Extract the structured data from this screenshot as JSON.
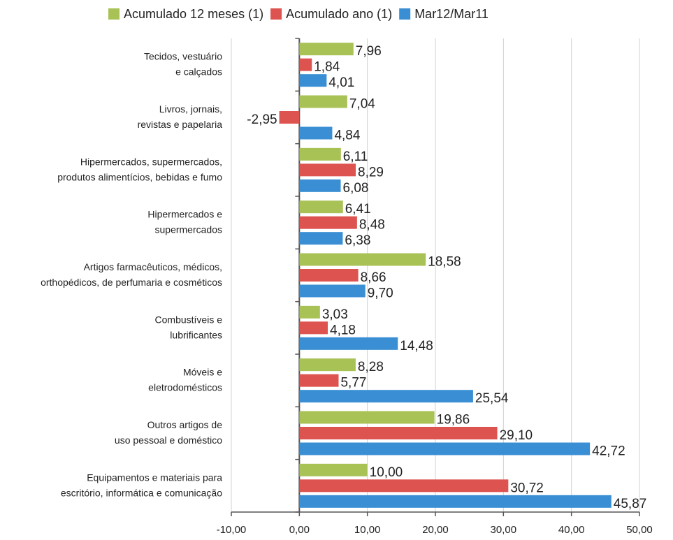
{
  "chart_data": {
    "type": "hbar",
    "categories": [
      "Tecidos, vestuário\ne calçados",
      "Livros, jornais,\nrevistas e papelaria",
      "Hipermercados, supermercados,\nprodutos alimentícios, bebidas e fumo",
      "Hipermercados e\nsupermercados",
      "Artigos farmacêuticos, médicos,\northopédicos, de perfumaria e cosméticos",
      "Combustíveis e\nlubrificantes",
      "Móveis e\neletrodomésticos",
      "Outros artigos de\nuso pessoal e doméstico",
      "Equipamentos e materiais para\nescritório, informática e comunicação"
    ],
    "series": [
      {
        "name": "Acumulado 12 meses (1)",
        "color": "#a8c256",
        "values": [
          7.96,
          7.04,
          6.11,
          6.41,
          18.58,
          3.03,
          8.28,
          19.86,
          10.0
        ],
        "value_labels": [
          "7,96",
          "7,04",
          "6,11",
          "6,41",
          "18,58",
          "3,03",
          "8,28",
          "19,86",
          "10,00"
        ]
      },
      {
        "name": "Acumulado ano (1)",
        "color": "#dd534f",
        "values": [
          1.84,
          -2.95,
          8.29,
          8.48,
          8.66,
          4.18,
          5.77,
          29.1,
          30.72
        ],
        "value_labels": [
          "1,84",
          "-2,95",
          "8,29",
          "8,48",
          "8,66",
          "4,18",
          "5,77",
          "29,10",
          "30,72"
        ]
      },
      {
        "name": "Mar12/Mar11",
        "color": "#3a8fd4",
        "values": [
          4.01,
          4.84,
          6.08,
          6.38,
          9.7,
          14.48,
          25.54,
          42.72,
          45.87
        ],
        "value_labels": [
          "4,01",
          "4,84",
          "6,08",
          "6,38",
          "9,70",
          "14,48",
          "25,54",
          "42,72",
          "45,87"
        ]
      }
    ],
    "xlim": [
      -10,
      50
    ],
    "xticks": [
      {
        "value": -10,
        "label": "-10,00"
      },
      {
        "value": 0,
        "label": "0,00"
      },
      {
        "value": 10,
        "label": "10,00"
      },
      {
        "value": 20,
        "label": "20,00"
      },
      {
        "value": 30,
        "label": "30,00"
      },
      {
        "value": 40,
        "label": "40,00"
      },
      {
        "value": 50,
        "label": "50,00"
      }
    ],
    "grid": true,
    "legend": "top"
  }
}
